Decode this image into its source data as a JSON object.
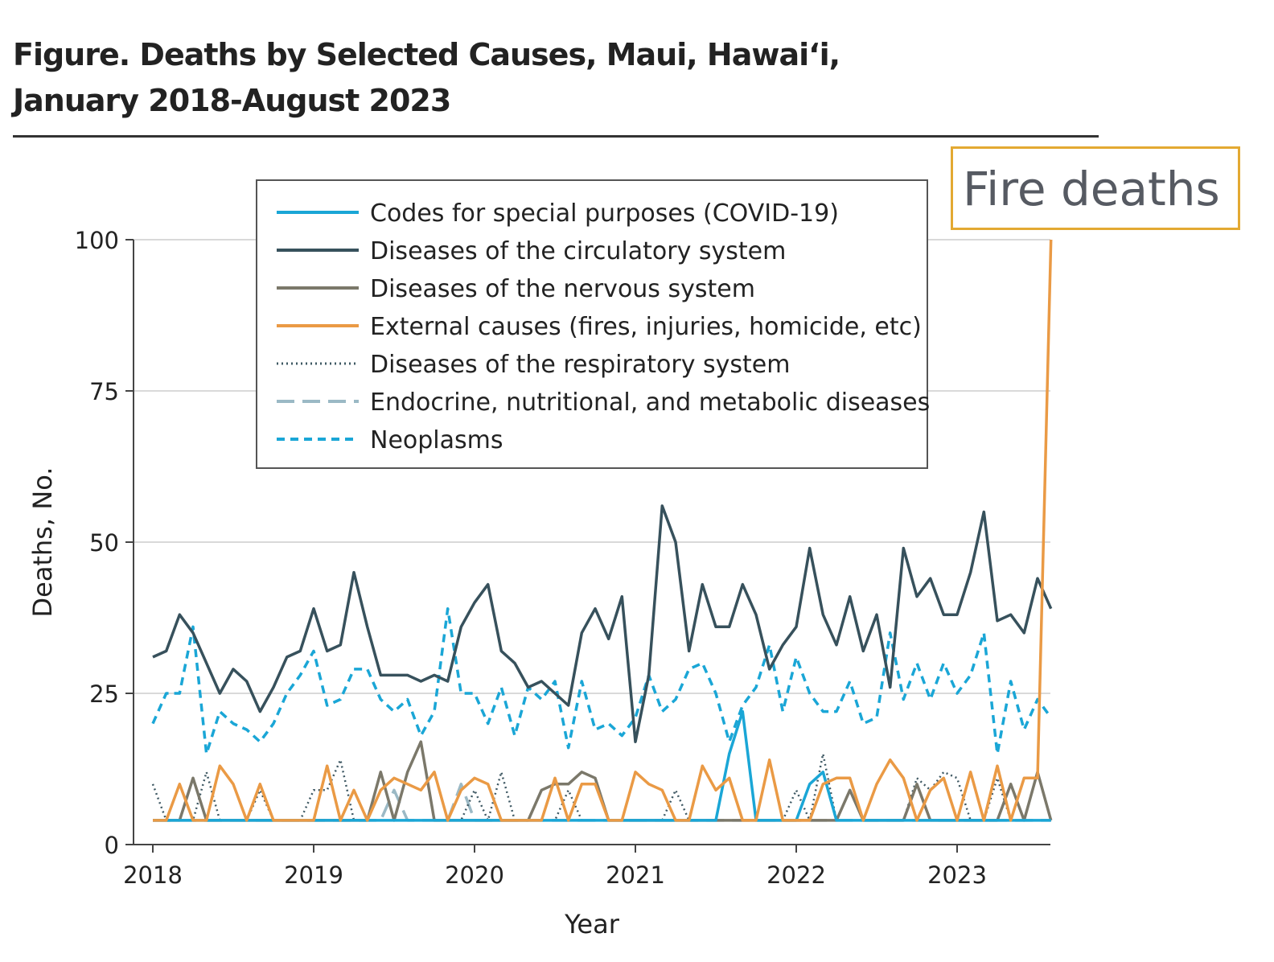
{
  "figure": {
    "title_line1": "Figure. Deaths by Selected Causes, Maui, Hawai‘i,",
    "title_line2": "January 2018-August 2023",
    "callout": "Fire deaths",
    "callout_color": "#e3a932"
  },
  "chart_data": {
    "type": "line",
    "title": "Figure. Deaths by Selected Causes, Maui, Hawai‘i, January 2018-August 2023",
    "xlabel": "Year",
    "ylabel": "Deaths, No.",
    "x_ticks": [
      "2018",
      "2019",
      "2020",
      "2021",
      "2022",
      "2023"
    ],
    "y_ticks": [
      0,
      25,
      50,
      75,
      100
    ],
    "ylim": [
      0,
      100
    ],
    "xlim": [
      "2018-01",
      "2023-08"
    ],
    "grid": "horizontal",
    "legend_position": "top-center",
    "x": [
      "2018-01",
      "2018-02",
      "2018-03",
      "2018-04",
      "2018-05",
      "2018-06",
      "2018-07",
      "2018-08",
      "2018-09",
      "2018-10",
      "2018-11",
      "2018-12",
      "2019-01",
      "2019-02",
      "2019-03",
      "2019-04",
      "2019-05",
      "2019-06",
      "2019-07",
      "2019-08",
      "2019-09",
      "2019-10",
      "2019-11",
      "2019-12",
      "2020-01",
      "2020-02",
      "2020-03",
      "2020-04",
      "2020-05",
      "2020-06",
      "2020-07",
      "2020-08",
      "2020-09",
      "2020-10",
      "2020-11",
      "2020-12",
      "2021-01",
      "2021-02",
      "2021-03",
      "2021-04",
      "2021-05",
      "2021-06",
      "2021-07",
      "2021-08",
      "2021-09",
      "2021-10",
      "2021-11",
      "2021-12",
      "2022-01",
      "2022-02",
      "2022-03",
      "2022-04",
      "2022-05",
      "2022-06",
      "2022-07",
      "2022-08",
      "2022-09",
      "2022-10",
      "2022-11",
      "2022-12",
      "2023-01",
      "2023-02",
      "2023-03",
      "2023-04",
      "2023-05",
      "2023-06",
      "2023-07",
      "2023-08"
    ],
    "series": [
      {
        "name": "Codes for special purposes (COVID-19)",
        "color": "#1aa6d6",
        "style": "solid",
        "values": [
          4,
          4,
          4,
          4,
          4,
          4,
          4,
          4,
          4,
          4,
          4,
          4,
          4,
          4,
          4,
          4,
          4,
          4,
          4,
          4,
          4,
          4,
          4,
          4,
          4,
          4,
          4,
          4,
          4,
          4,
          4,
          4,
          4,
          4,
          4,
          4,
          4,
          4,
          4,
          4,
          4,
          4,
          4,
          15,
          22,
          4,
          4,
          4,
          4,
          10,
          12,
          4,
          4,
          4,
          4,
          4,
          4,
          4,
          4,
          4,
          4,
          4,
          4,
          4,
          4,
          4,
          4,
          4
        ]
      },
      {
        "name": "Diseases of the circulatory system",
        "color": "#37515c",
        "style": "solid",
        "values": [
          31,
          32,
          38,
          35,
          30,
          25,
          29,
          27,
          22,
          26,
          31,
          32,
          39,
          32,
          33,
          45,
          36,
          28,
          28,
          28,
          27,
          28,
          27,
          36,
          40,
          43,
          32,
          30,
          26,
          27,
          25,
          23,
          35,
          39,
          34,
          41,
          17,
          28,
          56,
          50,
          32,
          43,
          36,
          36,
          43,
          38,
          29,
          33,
          36,
          49,
          38,
          33,
          41,
          32,
          38,
          26,
          49,
          41,
          44,
          38,
          38,
          45,
          55,
          37,
          38,
          35,
          44,
          39
        ]
      },
      {
        "name": "Diseases of the nervous system",
        "color": "#7b786a",
        "style": "solid",
        "values": [
          4,
          4,
          4,
          11,
          4,
          4,
          4,
          4,
          4,
          4,
          4,
          4,
          4,
          4,
          4,
          4,
          4,
          12,
          4,
          12,
          17,
          4,
          4,
          4,
          4,
          4,
          4,
          4,
          4,
          9,
          10,
          10,
          12,
          11,
          4,
          4,
          4,
          4,
          4,
          4,
          4,
          4,
          4,
          4,
          4,
          4,
          4,
          4,
          4,
          4,
          4,
          4,
          9,
          4,
          4,
          4,
          4,
          10,
          4,
          4,
          4,
          4,
          4,
          4,
          10,
          4,
          12,
          4
        ]
      },
      {
        "name": "External causes (fires, injuries, homicide, etc)",
        "color": "#ea9a45",
        "style": "solid",
        "values": [
          4,
          4,
          10,
          4,
          4,
          13,
          10,
          4,
          10,
          4,
          4,
          4,
          4,
          13,
          4,
          9,
          4,
          9,
          11,
          10,
          9,
          12,
          4,
          9,
          11,
          10,
          4,
          4,
          4,
          4,
          11,
          4,
          10,
          10,
          4,
          4,
          12,
          10,
          9,
          4,
          4,
          13,
          9,
          11,
          4,
          4,
          14,
          4,
          4,
          4,
          10,
          11,
          11,
          4,
          10,
          14,
          11,
          4,
          9,
          11,
          4,
          12,
          4,
          13,
          4,
          11,
          11,
          100
        ]
      },
      {
        "name": "Diseases of the respiratory system",
        "color": "#3e5863",
        "style": "dotted",
        "values": [
          10,
          4,
          4,
          4,
          12,
          4,
          4,
          4,
          9,
          4,
          4,
          4,
          9,
          9,
          14,
          4,
          4,
          4,
          4,
          4,
          4,
          4,
          4,
          4,
          9,
          4,
          12,
          4,
          4,
          4,
          4,
          9,
          4,
          4,
          4,
          4,
          4,
          4,
          4,
          9,
          4,
          4,
          4,
          4,
          4,
          4,
          4,
          4,
          9,
          4,
          15,
          4,
          4,
          4,
          4,
          4,
          4,
          11,
          9,
          12,
          11,
          4,
          4,
          11,
          4,
          4,
          4,
          4
        ]
      },
      {
        "name": "Endocrine, nutritional, and metabolic diseases",
        "color": "#9bb9c5",
        "style": "longdash",
        "values": [
          4,
          4,
          4,
          4,
          4,
          4,
          4,
          4,
          4,
          4,
          4,
          4,
          4,
          4,
          4,
          4,
          4,
          4,
          9,
          4,
          4,
          4,
          4,
          10,
          4,
          4,
          4,
          4,
          4,
          4,
          4,
          4,
          4,
          4,
          4,
          4,
          4,
          4,
          4,
          4,
          4,
          4,
          4,
          4,
          4,
          4,
          4,
          4,
          4,
          4,
          4,
          4,
          4,
          4,
          4,
          4,
          4,
          4,
          4,
          4,
          4,
          4,
          4,
          4,
          4,
          4,
          4,
          4
        ]
      },
      {
        "name": "Neoplasms",
        "color": "#1aa6d6",
        "style": "shortdash",
        "values": [
          20,
          25,
          25,
          36,
          15,
          22,
          20,
          19,
          17,
          20,
          25,
          28,
          32,
          23,
          24,
          29,
          29,
          24,
          22,
          24,
          18,
          22,
          39,
          25,
          25,
          20,
          26,
          18,
          26,
          24,
          27,
          16,
          27,
          19,
          20,
          18,
          21,
          28,
          22,
          24,
          29,
          30,
          25,
          17,
          23,
          26,
          33,
          22,
          31,
          25,
          22,
          22,
          27,
          20,
          21,
          35,
          24,
          30,
          24,
          30,
          25,
          28,
          35,
          15,
          27,
          19,
          24,
          21
        ]
      }
    ]
  }
}
